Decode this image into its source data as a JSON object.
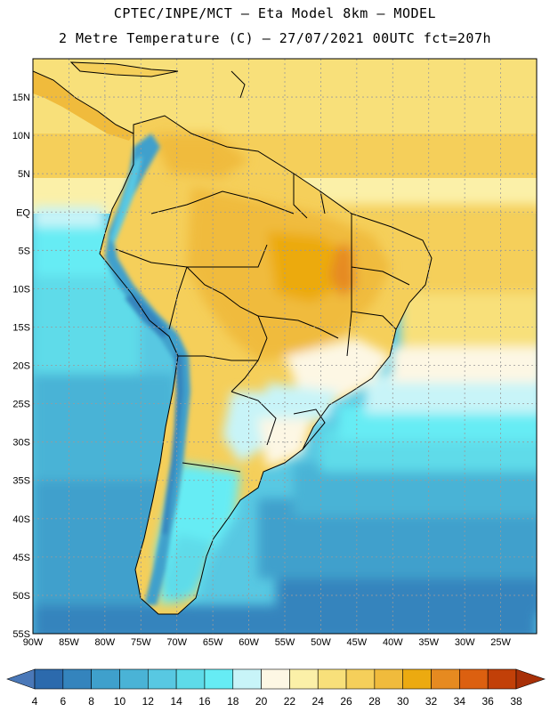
{
  "header": {
    "title_line1": "CPTEC/INPE/MCT –  Eta Model 8km – MODEL",
    "title_line2": "2 Metre Temperature (C) – 27/07/2021 00UTC fct=207h"
  },
  "map": {
    "lat_range": [
      -55,
      20
    ],
    "lon_range": [
      -90,
      -20
    ],
    "lat_labels": [
      {
        "value": 15,
        "text": "15N"
      },
      {
        "value": 10,
        "text": "10N"
      },
      {
        "value": 5,
        "text": "5N"
      },
      {
        "value": 0,
        "text": "EQ"
      },
      {
        "value": -5,
        "text": "5S"
      },
      {
        "value": -10,
        "text": "10S"
      },
      {
        "value": -15,
        "text": "15S"
      },
      {
        "value": -20,
        "text": "20S"
      },
      {
        "value": -25,
        "text": "25S"
      },
      {
        "value": -30,
        "text": "30S"
      },
      {
        "value": -35,
        "text": "35S"
      },
      {
        "value": -40,
        "text": "40S"
      },
      {
        "value": -45,
        "text": "45S"
      },
      {
        "value": -50,
        "text": "50S"
      },
      {
        "value": -55,
        "text": "55S"
      }
    ],
    "lon_labels": [
      {
        "value": -90,
        "text": "90W"
      },
      {
        "value": -85,
        "text": "85W"
      },
      {
        "value": -80,
        "text": "80W"
      },
      {
        "value": -75,
        "text": "75W"
      },
      {
        "value": -70,
        "text": "70W"
      },
      {
        "value": -65,
        "text": "65W"
      },
      {
        "value": -60,
        "text": "60W"
      },
      {
        "value": -55,
        "text": "55W"
      },
      {
        "value": -50,
        "text": "50W"
      },
      {
        "value": -45,
        "text": "45W"
      },
      {
        "value": -40,
        "text": "40W"
      },
      {
        "value": -35,
        "text": "35W"
      },
      {
        "value": -30,
        "text": "30W"
      },
      {
        "value": -25,
        "text": "25W"
      }
    ]
  },
  "colorbar": {
    "levels": [
      "4",
      "6",
      "8",
      "10",
      "12",
      "14",
      "16",
      "18",
      "20",
      "22",
      "24",
      "26",
      "28",
      "30",
      "32",
      "34",
      "36",
      "38"
    ],
    "colors": [
      "#4a78b8",
      "#2c6aad",
      "#3484bd",
      "#3fa0cc",
      "#4ab3d6",
      "#58c8e2",
      "#5edbe9",
      "#66ecf4",
      "#c8f4f8",
      "#fdf7e4",
      "#fbf0a8",
      "#f8e07a",
      "#f5cf5a",
      "#f0bb3c",
      "#ecaa10",
      "#e68a20",
      "#dc6010",
      "#c24008",
      "#a83008"
    ]
  }
}
